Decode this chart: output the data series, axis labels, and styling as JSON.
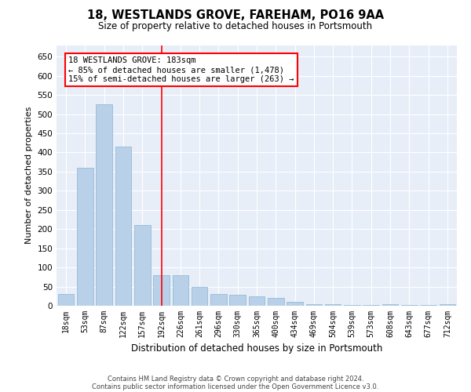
{
  "title": "18, WESTLANDS GROVE, FAREHAM, PO16 9AA",
  "subtitle": "Size of property relative to detached houses in Portsmouth",
  "xlabel": "Distribution of detached houses by size in Portsmouth",
  "ylabel": "Number of detached properties",
  "bar_color": "#b8d0e8",
  "bar_edge_color": "#8ab4d4",
  "background_color": "#e8eef8",
  "grid_color": "#ffffff",
  "categories": [
    "18sqm",
    "53sqm",
    "87sqm",
    "122sqm",
    "157sqm",
    "192sqm",
    "226sqm",
    "261sqm",
    "296sqm",
    "330sqm",
    "365sqm",
    "400sqm",
    "434sqm",
    "469sqm",
    "504sqm",
    "539sqm",
    "573sqm",
    "608sqm",
    "643sqm",
    "677sqm",
    "712sqm"
  ],
  "values": [
    30,
    360,
    525,
    415,
    210,
    80,
    80,
    50,
    30,
    28,
    25,
    20,
    10,
    5,
    5,
    3,
    3,
    5,
    3,
    3,
    5
  ],
  "red_line_x": 5,
  "annotation_title": "18 WESTLANDS GROVE: 183sqm",
  "annotation_line1": "← 85% of detached houses are smaller (1,478)",
  "annotation_line2": "15% of semi-detached houses are larger (263) →",
  "ylim": [
    0,
    680
  ],
  "yticks": [
    0,
    50,
    100,
    150,
    200,
    250,
    300,
    350,
    400,
    450,
    500,
    550,
    600,
    650
  ],
  "footer1": "Contains HM Land Registry data © Crown copyright and database right 2024.",
  "footer2": "Contains public sector information licensed under the Open Government Licence v3.0."
}
